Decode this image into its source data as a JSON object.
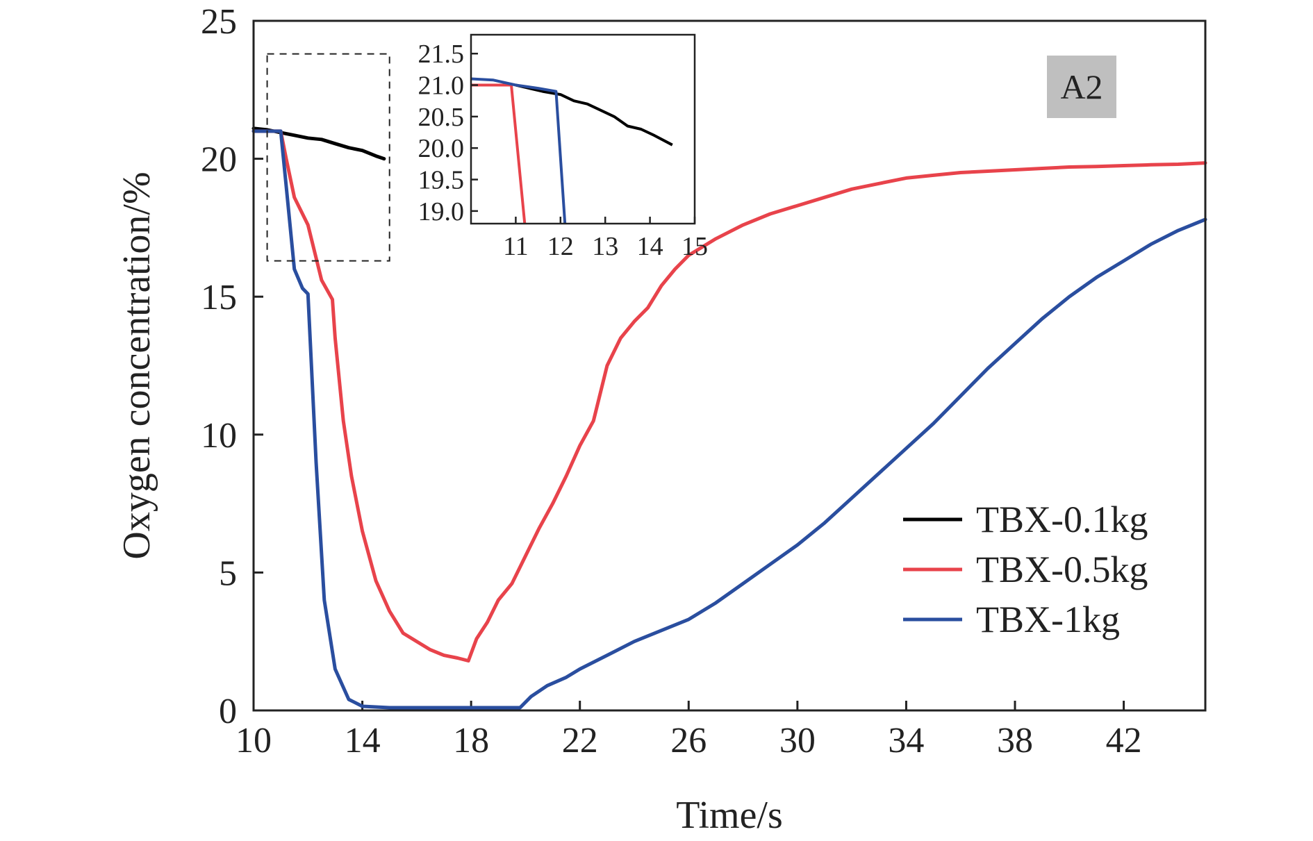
{
  "chart_data": {
    "type": "line",
    "xlabel": "Time/s",
    "ylabel": "Oxygen concentration/%",
    "xlim": [
      10,
      45
    ],
    "ylim": [
      0,
      25
    ],
    "xticks": [
      10,
      14,
      18,
      22,
      26,
      30,
      34,
      38,
      42
    ],
    "yticks": [
      0,
      5,
      10,
      15,
      20,
      25
    ],
    "grid": false,
    "legend": "bottom-right",
    "badge": "A2",
    "colors": {
      "TBX-0.1kg": "#000000",
      "TBX-0.5kg": "#e8434b",
      "TBX-1kg": "#2a4e9f",
      "badge_bg": "#bfbfbf"
    },
    "series": [
      {
        "name": "TBX-0.1kg",
        "x": [
          10,
          10.5,
          11.0,
          11.5,
          12.0,
          12.5,
          13.0,
          13.5,
          14.0,
          14.5,
          14.8
        ],
        "y": [
          21.1,
          21.05,
          20.95,
          20.85,
          20.75,
          20.7,
          20.55,
          20.4,
          20.3,
          20.1,
          20.0
        ]
      },
      {
        "name": "TBX-0.5kg",
        "x": [
          10,
          11.0,
          11.2,
          11.5,
          12.0,
          12.5,
          12.9,
          13.0,
          13.3,
          13.6,
          14.0,
          14.5,
          15.0,
          15.5,
          16.0,
          16.5,
          17.0,
          17.5,
          17.9,
          18.2,
          18.6,
          19.0,
          19.5,
          20.0,
          20.5,
          21.0,
          21.5,
          22.0,
          22.5,
          23.0,
          23.5,
          24.0,
          24.5,
          25.0,
          25.5,
          26.0,
          27.0,
          28.0,
          29.0,
          30.0,
          31.0,
          32.0,
          33.0,
          34.0,
          35.0,
          36.0,
          37.0,
          38.0,
          39.0,
          40.0,
          41.0,
          42.0,
          43.0,
          44.0,
          45.0
        ],
        "y": [
          21.0,
          21.0,
          20.0,
          18.6,
          17.6,
          15.6,
          14.9,
          13.5,
          10.5,
          8.5,
          6.5,
          4.7,
          3.6,
          2.8,
          2.5,
          2.2,
          2.0,
          1.9,
          1.8,
          2.6,
          3.2,
          4.0,
          4.6,
          5.6,
          6.6,
          7.5,
          8.5,
          9.6,
          10.5,
          12.5,
          13.5,
          14.1,
          14.6,
          15.4,
          16.0,
          16.5,
          17.1,
          17.6,
          18.0,
          18.3,
          18.6,
          18.9,
          19.1,
          19.3,
          19.4,
          19.5,
          19.55,
          19.6,
          19.65,
          19.7,
          19.72,
          19.75,
          19.78,
          19.8,
          19.85
        ]
      },
      {
        "name": "TBX-1kg",
        "x": [
          10,
          11.0,
          11.2,
          11.5,
          11.8,
          12.0,
          12.3,
          12.6,
          13.0,
          13.5,
          14.0,
          15.0,
          16.0,
          17.0,
          18.0,
          19.0,
          19.8,
          20.2,
          20.8,
          21.5,
          22.0,
          23.0,
          24.0,
          25.0,
          26.0,
          27.0,
          28.0,
          29.0,
          30.0,
          31.0,
          32.0,
          33.0,
          34.0,
          35.0,
          36.0,
          37.0,
          38.0,
          39.0,
          40.0,
          41.0,
          42.0,
          43.0,
          44.0,
          45.0
        ],
        "y": [
          21.0,
          21.0,
          19.0,
          16.0,
          15.3,
          15.1,
          9.0,
          4.0,
          1.5,
          0.4,
          0.15,
          0.1,
          0.1,
          0.1,
          0.1,
          0.1,
          0.1,
          0.5,
          0.9,
          1.2,
          1.5,
          2.0,
          2.5,
          2.9,
          3.3,
          3.9,
          4.6,
          5.3,
          6.0,
          6.8,
          7.7,
          8.6,
          9.5,
          10.4,
          11.4,
          12.4,
          13.3,
          14.2,
          15.0,
          15.7,
          16.3,
          16.9,
          17.4,
          17.8
        ]
      }
    ],
    "inset": {
      "xlim": [
        10,
        15
      ],
      "ylim": [
        18.8,
        21.8
      ],
      "xticks": [
        11,
        12,
        13,
        14,
        15
      ],
      "yticks": [
        19.0,
        19.5,
        20.0,
        20.5,
        21.0,
        21.5
      ],
      "series": [
        {
          "name": "TBX-0.1kg",
          "x": [
            11.0,
            11.3,
            11.6,
            12.0,
            12.3,
            12.6,
            12.9,
            13.2,
            13.5,
            13.8,
            14.1,
            14.5
          ],
          "y": [
            21.0,
            20.95,
            20.9,
            20.85,
            20.75,
            20.7,
            20.6,
            20.5,
            20.35,
            20.3,
            20.2,
            20.05
          ]
        },
        {
          "name": "TBX-0.5kg",
          "x": [
            10.0,
            10.9,
            11.2
          ],
          "y": [
            21.0,
            21.0,
            18.8
          ]
        },
        {
          "name": "TBX-1kg",
          "x": [
            10.0,
            10.5,
            11.0,
            11.5,
            11.9,
            12.1
          ],
          "y": [
            21.1,
            21.08,
            21.0,
            20.95,
            20.9,
            18.8
          ]
        }
      ]
    }
  }
}
